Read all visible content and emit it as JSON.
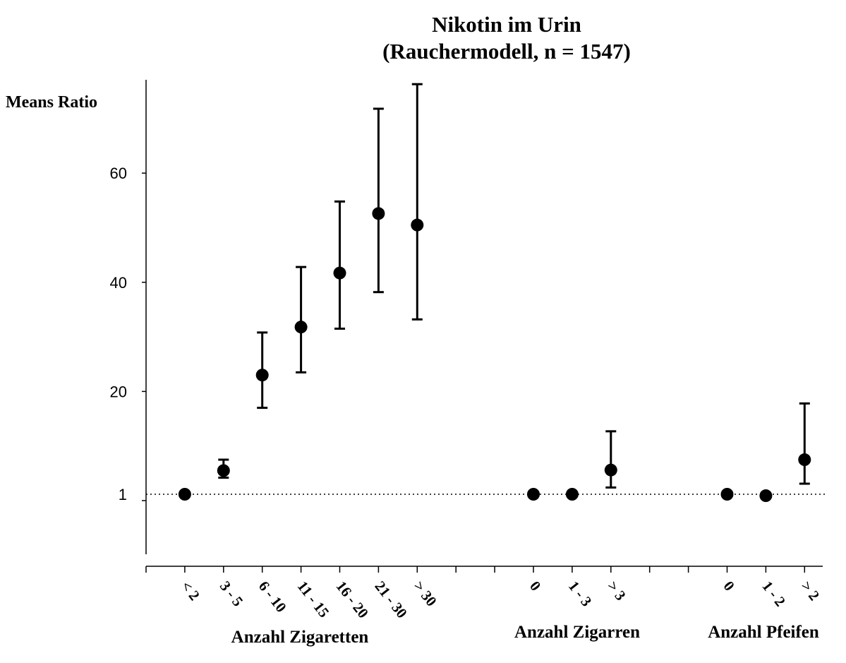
{
  "chart_data": {
    "type": "scatter",
    "title": "Nikotin im Urin",
    "subtitle": "(Rauchermodell, n = 1547)",
    "ylabel": "Means Ratio",
    "y_ticks": [
      1,
      20,
      40,
      60
    ],
    "ylim": [
      -9,
      77
    ],
    "reference_line": 1,
    "groups": [
      {
        "name": "Anzahl Zigaretten",
        "categories": [
          "< 2",
          "3 - 5",
          "6 - 10",
          "11 - 15",
          "16 - 20",
          "21 - 30",
          "> 30"
        ],
        "values": [
          1,
          5.5,
          23,
          31.8,
          41.7,
          52.6,
          50.5
        ],
        "lower": [
          1,
          4.2,
          17,
          23.5,
          31.5,
          38.2,
          33.2
        ],
        "upper": [
          1,
          7.5,
          30.8,
          42.8,
          54.8,
          71.8,
          76.3
        ]
      },
      {
        "name": "Anzahl Zigarren",
        "categories": [
          "0",
          "1 - 3",
          "> 3"
        ],
        "values": [
          1,
          1,
          5.6
        ],
        "lower": [
          1,
          1,
          2.4
        ],
        "upper": [
          1,
          1.6,
          12.7
        ]
      },
      {
        "name": "Anzahl Pfeifen",
        "categories": [
          "0",
          "1 - 2",
          "> 2"
        ],
        "values": [
          1,
          0.9,
          7.5
        ],
        "lower": [
          1,
          0.9,
          3.1
        ],
        "upper": [
          1,
          0.9,
          17.8
        ]
      }
    ]
  }
}
